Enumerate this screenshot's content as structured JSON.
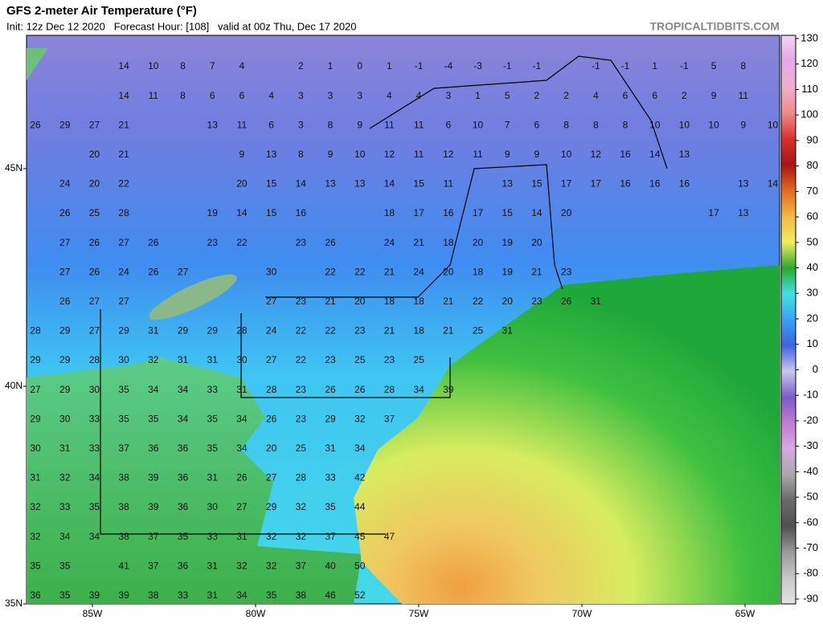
{
  "header": {
    "title": "GFS 2-meter Air Temperature (°F)",
    "subtitle": "Init: 12z Dec 12 2020   Forecast Hour: [108]   valid at 00z Thu, Dec 17 2020",
    "site": "TROPICALTIDBITS.COM"
  },
  "lat_ticks": [
    {
      "value": 45,
      "label": "45N"
    },
    {
      "value": 40,
      "label": "40N"
    },
    {
      "value": 35,
      "label": "35N"
    }
  ],
  "lon_ticks": [
    {
      "value": -85,
      "label": "85W"
    },
    {
      "value": -80,
      "label": "80W"
    },
    {
      "value": -75,
      "label": "75W"
    },
    {
      "value": -70,
      "label": "70W"
    },
    {
      "value": -65,
      "label": "65W"
    }
  ],
  "colorbar": {
    "ticks": [
      130,
      120,
      110,
      100,
      90,
      80,
      70,
      60,
      50,
      40,
      30,
      20,
      10,
      0,
      -10,
      -20,
      -30,
      -40,
      -50,
      -60,
      -70,
      -80,
      -90
    ],
    "colors": [
      "#f2d4f2",
      "#e6a8e6",
      "#f0b0cc",
      "#f08a8a",
      "#d83030",
      "#a81414",
      "#e06a22",
      "#f0b848",
      "#f0ee60",
      "#2aa82a",
      "#40e2e2",
      "#3aa2f0",
      "#3c64e0",
      "#c8c8ec",
      "#7a5cc4",
      "#c07cd0",
      "#d8a8e4",
      "#a8a8a8",
      "#6a6a6a",
      "#505050",
      "#9a9a9a",
      "#c8c8c8",
      "#e4e4e4"
    ]
  },
  "temperature_grid": [
    [
      null,
      null,
      null,
      14,
      10,
      8,
      7,
      4,
      null,
      2,
      1,
      0,
      1,
      -1,
      -4,
      -3,
      -1,
      -1,
      null,
      -1,
      -1,
      1,
      -1,
      5,
      8,
      null
    ],
    [
      null,
      null,
      null,
      14,
      11,
      8,
      6,
      6,
      4,
      3,
      3,
      3,
      4,
      4,
      3,
      1,
      5,
      2,
      2,
      4,
      6,
      6,
      2,
      9,
      11,
      null
    ],
    [
      26,
      29,
      27,
      21,
      null,
      null,
      13,
      11,
      6,
      3,
      8,
      9,
      11,
      11,
      6,
      10,
      7,
      6,
      8,
      8,
      8,
      10,
      10,
      10,
      9,
      10
    ],
    [
      null,
      null,
      20,
      21,
      null,
      null,
      null,
      9,
      13,
      8,
      9,
      10,
      12,
      11,
      12,
      11,
      9,
      9,
      10,
      12,
      16,
      14,
      13,
      null,
      null,
      null
    ],
    [
      null,
      24,
      20,
      22,
      null,
      null,
      null,
      20,
      15,
      14,
      13,
      13,
      14,
      15,
      11,
      null,
      13,
      15,
      17,
      17,
      16,
      16,
      16,
      null,
      13,
      14
    ],
    [
      null,
      26,
      25,
      28,
      null,
      null,
      19,
      14,
      15,
      16,
      null,
      null,
      18,
      17,
      16,
      17,
      15,
      14,
      20,
      null,
      null,
      null,
      null,
      17,
      13,
      null
    ],
    [
      null,
      27,
      26,
      27,
      26,
      null,
      23,
      22,
      null,
      23,
      26,
      null,
      24,
      21,
      18,
      20,
      19,
      20,
      null,
      null,
      null,
      null,
      null,
      null,
      null,
      null
    ],
    [
      null,
      27,
      26,
      24,
      26,
      27,
      null,
      null,
      30,
      null,
      22,
      22,
      21,
      24,
      20,
      18,
      19,
      21,
      23,
      null,
      null,
      null,
      null,
      null,
      null,
      null
    ],
    [
      null,
      26,
      27,
      27,
      null,
      null,
      null,
      null,
      27,
      23,
      21,
      20,
      18,
      18,
      21,
      22,
      20,
      23,
      26,
      31,
      null,
      null,
      null,
      null,
      null,
      null
    ],
    [
      28,
      29,
      27,
      29,
      31,
      29,
      29,
      28,
      24,
      22,
      22,
      23,
      21,
      18,
      21,
      25,
      31,
      null,
      null,
      null,
      null,
      null,
      null,
      null,
      null,
      null
    ],
    [
      29,
      29,
      28,
      30,
      32,
      31,
      31,
      30,
      27,
      22,
      23,
      25,
      23,
      25,
      null,
      null,
      null,
      null,
      null,
      null,
      null,
      null,
      null,
      null,
      null,
      null
    ],
    [
      27,
      29,
      30,
      35,
      34,
      34,
      33,
      31,
      28,
      23,
      26,
      26,
      28,
      34,
      39,
      null,
      null,
      null,
      null,
      null,
      null,
      null,
      null,
      null,
      null,
      null
    ],
    [
      29,
      30,
      33,
      35,
      35,
      34,
      35,
      34,
      26,
      23,
      29,
      32,
      37,
      null,
      null,
      null,
      null,
      null,
      null,
      null,
      null,
      null,
      null,
      null,
      null,
      null
    ],
    [
      30,
      31,
      33,
      37,
      36,
      36,
      35,
      34,
      20,
      25,
      31,
      34,
      null,
      null,
      null,
      null,
      null,
      null,
      null,
      null,
      null,
      null,
      null,
      null,
      null,
      null
    ],
    [
      31,
      32,
      34,
      38,
      39,
      36,
      31,
      26,
      27,
      28,
      33,
      42,
      null,
      null,
      null,
      null,
      null,
      null,
      null,
      null,
      null,
      null,
      null,
      null,
      null,
      null
    ],
    [
      32,
      33,
      35,
      38,
      39,
      36,
      30,
      27,
      29,
      32,
      35,
      44,
      null,
      null,
      null,
      null,
      null,
      null,
      null,
      null,
      null,
      null,
      null,
      null,
      null,
      null
    ],
    [
      32,
      34,
      34,
      38,
      37,
      35,
      33,
      31,
      32,
      32,
      37,
      45,
      47,
      null,
      null,
      null,
      null,
      null,
      null,
      null,
      null,
      null,
      null,
      null,
      null,
      null
    ],
    [
      35,
      35,
      null,
      41,
      37,
      36,
      31,
      32,
      32,
      37,
      40,
      50,
      null,
      null,
      null,
      null,
      null,
      null,
      null,
      null,
      null,
      null,
      null,
      null,
      null,
      null
    ],
    [
      36,
      35,
      39,
      39,
      38,
      33,
      31,
      34,
      35,
      38,
      46,
      52,
      null,
      null,
      null,
      null,
      null,
      null,
      null,
      null,
      null,
      null,
      null,
      null,
      null,
      null
    ]
  ]
}
